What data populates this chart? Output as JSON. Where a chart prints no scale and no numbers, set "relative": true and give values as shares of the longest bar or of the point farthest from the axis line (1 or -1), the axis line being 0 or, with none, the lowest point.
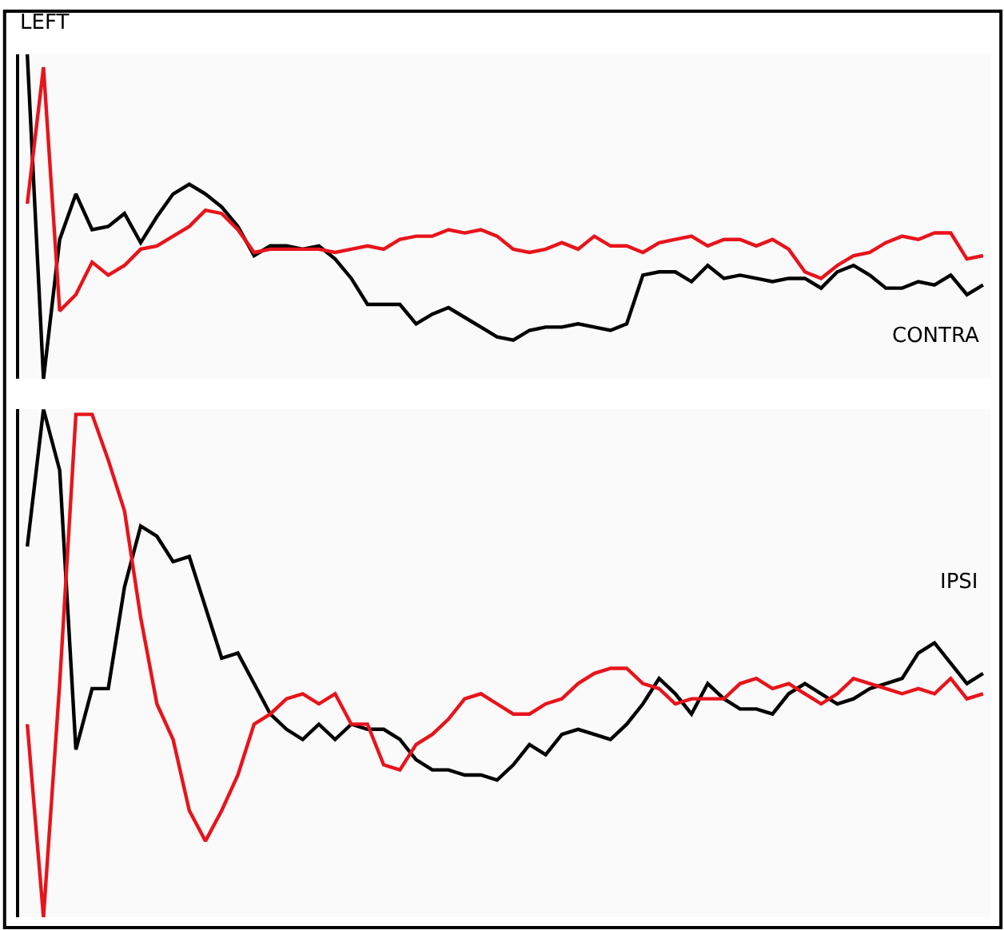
{
  "chart_data": [
    {
      "type": "line",
      "title": "LEFT",
      "relative": true,
      "marker": "none",
      "line_style": "solid",
      "categories": [
        null,
        null,
        null,
        null,
        null,
        null,
        null,
        null,
        null,
        null,
        null,
        null,
        null,
        null,
        null,
        null,
        null,
        null,
        null,
        null,
        null,
        null,
        null,
        null,
        null,
        null,
        null,
        null,
        null,
        null,
        null,
        null,
        null,
        null,
        null,
        null,
        null,
        null,
        null,
        null,
        null,
        null,
        null,
        null,
        null,
        null,
        null,
        null,
        null,
        null,
        null,
        null,
        null,
        null,
        null,
        null,
        null,
        null,
        null,
        null
      ],
      "annotations": [
        "CONTRA"
      ],
      "series": [
        {
          "color": "#000000",
          "values": [
            1.0,
            0.0,
            0.43,
            0.57,
            0.46,
            0.47,
            0.51,
            0.42,
            0.5,
            0.57,
            0.6,
            0.57,
            0.53,
            0.47,
            0.38,
            0.41,
            0.41,
            0.4,
            0.41,
            0.37,
            0.31,
            0.23,
            0.23,
            0.23,
            0.17,
            0.2,
            0.22,
            0.19,
            0.16,
            0.13,
            0.12,
            0.15,
            0.16,
            0.16,
            0.17,
            0.16,
            0.15,
            0.17,
            0.32,
            0.33,
            0.33,
            0.3,
            0.35,
            0.31,
            0.32,
            0.31,
            0.3,
            0.31,
            0.31,
            0.28,
            0.33,
            0.35,
            0.32,
            0.28,
            0.28,
            0.3,
            0.29,
            0.32,
            0.26,
            0.29
          ]
        },
        {
          "color": "#e8141b",
          "values": [
            0.54,
            0.96,
            0.21,
            0.26,
            0.36,
            0.32,
            0.35,
            0.4,
            0.41,
            0.44,
            0.47,
            0.52,
            0.51,
            0.46,
            0.39,
            0.4,
            0.4,
            0.4,
            0.4,
            0.39,
            0.4,
            0.41,
            0.4,
            0.43,
            0.44,
            0.44,
            0.46,
            0.45,
            0.46,
            0.44,
            0.4,
            0.39,
            0.4,
            0.42,
            0.4,
            0.44,
            0.41,
            0.41,
            0.39,
            0.42,
            0.43,
            0.44,
            0.41,
            0.43,
            0.43,
            0.41,
            0.43,
            0.4,
            0.33,
            0.31,
            0.35,
            0.38,
            0.39,
            0.42,
            0.44,
            0.43,
            0.45,
            0.45,
            0.37,
            0.38
          ]
        }
      ]
    },
    {
      "type": "line",
      "relative": true,
      "marker": "none",
      "line_style": "solid",
      "categories": [
        null,
        null,
        null,
        null,
        null,
        null,
        null,
        null,
        null,
        null,
        null,
        null,
        null,
        null,
        null,
        null,
        null,
        null,
        null,
        null,
        null,
        null,
        null,
        null,
        null,
        null,
        null,
        null,
        null,
        null,
        null,
        null,
        null,
        null,
        null,
        null,
        null,
        null,
        null,
        null,
        null,
        null,
        null,
        null,
        null,
        null,
        null,
        null,
        null,
        null,
        null,
        null,
        null,
        null,
        null,
        null,
        null,
        null,
        null,
        null
      ],
      "annotations": [
        "IPSI"
      ],
      "series": [
        {
          "color": "#000000",
          "values": [
            0.73,
            1.0,
            0.88,
            0.33,
            0.45,
            0.45,
            0.65,
            0.77,
            0.75,
            0.7,
            0.71,
            0.61,
            0.51,
            0.52,
            0.46,
            0.4,
            0.37,
            0.35,
            0.38,
            0.35,
            0.38,
            0.37,
            0.37,
            0.35,
            0.31,
            0.29,
            0.29,
            0.28,
            0.28,
            0.27,
            0.3,
            0.34,
            0.32,
            0.36,
            0.37,
            0.36,
            0.35,
            0.38,
            0.42,
            0.47,
            0.44,
            0.4,
            0.46,
            0.43,
            0.41,
            0.41,
            0.4,
            0.44,
            0.46,
            0.44,
            0.42,
            0.43,
            0.45,
            0.46,
            0.47,
            0.52,
            0.54,
            0.5,
            0.46,
            0.48
          ]
        },
        {
          "color": "#e8141b",
          "values": [
            0.38,
            0.0,
            0.46,
            0.99,
            0.99,
            0.9,
            0.8,
            0.59,
            0.42,
            0.35,
            0.21,
            0.15,
            0.21,
            0.28,
            0.38,
            0.4,
            0.43,
            0.44,
            0.42,
            0.44,
            0.38,
            0.38,
            0.3,
            0.29,
            0.34,
            0.36,
            0.39,
            0.43,
            0.44,
            0.42,
            0.4,
            0.4,
            0.42,
            0.43,
            0.46,
            0.48,
            0.49,
            0.49,
            0.46,
            0.45,
            0.42,
            0.43,
            0.43,
            0.43,
            0.46,
            0.47,
            0.45,
            0.46,
            0.44,
            0.42,
            0.44,
            0.47,
            0.46,
            0.45,
            0.44,
            0.45,
            0.44,
            0.47,
            0.43,
            0.44
          ]
        }
      ]
    }
  ]
}
